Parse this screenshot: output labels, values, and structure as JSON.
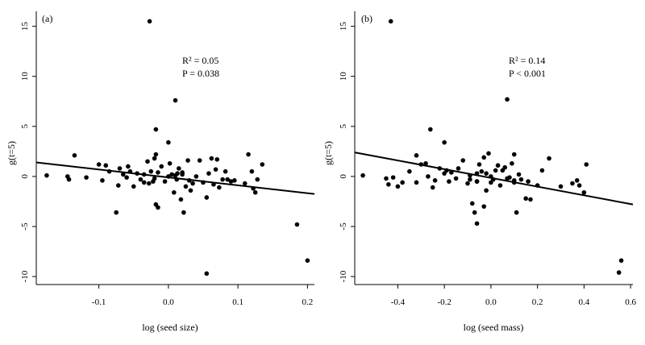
{
  "chart_data": [
    {
      "type": "scatter",
      "panel_label": "(a)",
      "xlabel": "log (seed size)",
      "ylabel": "g(t=5)",
      "xlim": [
        -0.19,
        0.21
      ],
      "ylim": [
        -10.8,
        16.5
      ],
      "xticks": [
        -0.1,
        0.0,
        0.1,
        0.2
      ],
      "xtick_labels": [
        "-0.1",
        "0.0",
        "0.1",
        "0.2"
      ],
      "yticks": [
        -10,
        -5,
        0,
        5,
        10,
        15
      ],
      "ytick_labels": [
        "-10",
        "-5",
        "0",
        "5",
        "10",
        "15"
      ],
      "stats": {
        "r2_label": "R² = 0.05",
        "p_label": "P = 0.038"
      },
      "regression": {
        "x": [
          -0.19,
          0.21
        ],
        "y": [
          1.4,
          -1.75
        ]
      },
      "points": {
        "x": [
          -0.175,
          -0.145,
          -0.143,
          -0.135,
          -0.118,
          -0.1,
          -0.095,
          -0.09,
          -0.085,
          -0.075,
          -0.07,
          -0.072,
          -0.065,
          -0.06,
          -0.058,
          -0.055,
          -0.05,
          -0.045,
          -0.04,
          -0.035,
          -0.035,
          -0.03,
          -0.028,
          -0.025,
          -0.022,
          -0.02,
          -0.018,
          -0.018,
          -0.015,
          -0.015,
          -0.01,
          -0.005,
          0.0,
          0.002,
          0.005,
          0.008,
          0.01,
          0.012,
          0.015,
          0.018,
          0.02,
          0.022,
          0.025,
          0.028,
          0.03,
          0.032,
          0.035,
          0.04,
          0.045,
          0.05,
          0.055,
          0.058,
          0.062,
          0.065,
          0.068,
          0.07,
          0.073,
          0.078,
          0.082,
          0.085,
          0.09,
          0.095,
          0.11,
          0.115,
          0.12,
          0.122,
          0.125,
          0.128,
          0.135,
          -0.027,
          0.01,
          -0.02,
          -0.018,
          0.0,
          0.013,
          0.02,
          0.055,
          0.185,
          0.2
        ],
        "y": [
          0.1,
          0.0,
          -0.3,
          2.1,
          -0.1,
          1.2,
          -0.4,
          1.1,
          0.5,
          -3.6,
          0.8,
          -0.9,
          0.2,
          -0.1,
          1.0,
          0.5,
          -1.0,
          0.3,
          -0.3,
          -0.6,
          0.2,
          1.5,
          -0.7,
          0.5,
          -0.5,
          1.8,
          -2.8,
          4.7,
          -3.1,
          0.4,
          1.0,
          -0.5,
          0.0,
          1.3,
          0.2,
          -1.6,
          0.1,
          -0.3,
          0.8,
          -2.3,
          0.4,
          -3.6,
          -1.0,
          1.6,
          -0.4,
          -1.4,
          -0.7,
          0.0,
          1.6,
          -0.6,
          -2.1,
          0.3,
          1.8,
          -0.8,
          0.7,
          1.7,
          -1.1,
          -0.3,
          0.5,
          -0.3,
          -0.5,
          -0.4,
          -0.7,
          2.2,
          0.5,
          -1.2,
          -1.6,
          -0.3,
          1.2,
          15.5,
          7.6,
          -0.2,
          2.2,
          3.4,
          0.3,
          0.2,
          -9.7,
          -4.8,
          -8.4
        ]
      }
    },
    {
      "type": "scatter",
      "panel_label": "(b)",
      "xlabel": "log (seed mass)",
      "ylabel": "g(t=5)",
      "xlim": [
        -0.585,
        0.61
      ],
      "ylim": [
        -10.8,
        16.5
      ],
      "xticks": [
        -0.4,
        -0.2,
        0.0,
        0.2,
        0.4,
        0.6
      ],
      "xtick_labels": [
        "-0.4",
        "-0.2",
        "0.0",
        "0.2",
        "0.4",
        "0.6"
      ],
      "yticks": [
        -10,
        -5,
        0,
        5,
        10,
        15
      ],
      "ytick_labels": [
        "-10",
        "-5",
        "0",
        "5",
        "10",
        "15"
      ],
      "stats": {
        "r2_label": "R² = 0.14",
        "p_label": "P < 0.001"
      },
      "regression": {
        "x": [
          -0.585,
          0.61
        ],
        "y": [
          2.4,
          -2.8
        ]
      },
      "points": {
        "x": [
          -0.55,
          -0.45,
          -0.44,
          -0.42,
          -0.4,
          -0.38,
          -0.35,
          -0.32,
          -0.3,
          -0.28,
          -0.27,
          -0.25,
          -0.24,
          -0.22,
          -0.2,
          -0.19,
          -0.18,
          -0.17,
          -0.15,
          -0.14,
          -0.12,
          -0.1,
          -0.09,
          -0.09,
          -0.08,
          -0.07,
          -0.06,
          -0.06,
          -0.05,
          -0.04,
          -0.03,
          -0.02,
          -0.02,
          -0.01,
          0.0,
          0.0,
          0.01,
          0.02,
          0.03,
          0.04,
          0.05,
          0.06,
          0.07,
          0.08,
          0.09,
          0.1,
          0.1,
          0.11,
          0.12,
          0.13,
          0.15,
          0.17,
          0.2,
          0.22,
          0.25,
          0.3,
          0.35,
          0.37,
          0.38,
          0.4,
          0.41,
          -0.43,
          0.07,
          -0.26,
          -0.2,
          -0.06,
          -0.06,
          0.1,
          0.16,
          0.55,
          0.56,
          -0.32,
          -0.03
        ],
        "y": [
          0.1,
          -0.2,
          -0.8,
          -0.1,
          -1.0,
          -0.6,
          0.5,
          2.1,
          1.2,
          1.3,
          0.0,
          -1.1,
          -0.4,
          0.8,
          0.3,
          0.6,
          -0.5,
          0.4,
          -0.2,
          0.8,
          1.6,
          -0.7,
          -0.3,
          0.1,
          -2.7,
          -3.6,
          0.3,
          -0.5,
          1.2,
          0.5,
          1.9,
          0.3,
          -1.4,
          2.3,
          0.0,
          -0.6,
          -0.3,
          0.6,
          1.1,
          -0.9,
          0.6,
          0.9,
          -0.2,
          -0.1,
          1.3,
          2.2,
          -0.4,
          -3.6,
          0.2,
          -0.3,
          -2.2,
          -2.3,
          -0.9,
          0.6,
          1.8,
          -1.0,
          -0.7,
          -0.4,
          -0.9,
          -1.6,
          1.2,
          15.5,
          7.7,
          4.7,
          3.4,
          -4.7,
          -0.5,
          -0.6,
          -0.5,
          -9.6,
          -8.4,
          -0.6,
          -3.0
        ]
      }
    }
  ]
}
